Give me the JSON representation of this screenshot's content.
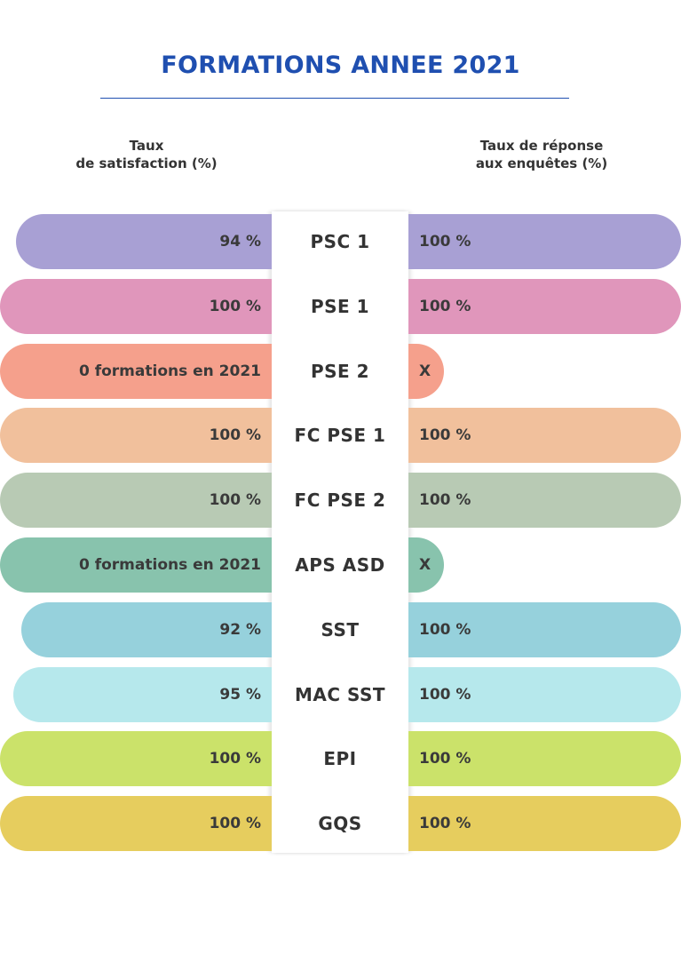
{
  "header": {
    "title": "FORMATIONS ANNEE 2021",
    "left_heading": [
      "Taux",
      "de satisfaction (%)"
    ],
    "right_heading": [
      "Taux de réponse",
      "aux enquêtes (%)"
    ]
  },
  "chart_data": {
    "type": "bar",
    "title": "FORMATIONS ANNEE 2021",
    "categories": [
      "PSC 1",
      "PSE 1",
      "PSE 2",
      "FC PSE 1",
      "FC PSE 2",
      "APS ASD",
      "SST",
      "MAC SST",
      "EPI",
      "GQS"
    ],
    "series": [
      {
        "name": "Taux de satisfaction (%)",
        "values": [
          94,
          100,
          null,
          100,
          100,
          null,
          92,
          95,
          100,
          100
        ],
        "labels": [
          "94 %",
          "100 %",
          "0 formations en 2021",
          "100 %",
          "100 %",
          "0 formations en 2021",
          "92 %",
          "95 %",
          "100 %",
          "100 %"
        ]
      },
      {
        "name": "Taux de réponse aux enquêtes (%)",
        "values": [
          100,
          100,
          null,
          100,
          100,
          null,
          100,
          100,
          100,
          100
        ],
        "labels": [
          "100 %",
          "100 %",
          "X",
          "100 %",
          "100 %",
          "X",
          "100 %",
          "100 %",
          "100 %",
          "100 %"
        ]
      }
    ],
    "colors": [
      "#a8a0d4",
      "#e096bb",
      "#f5a08c",
      "#f1c09c",
      "#b8cab4",
      "#88c3ad",
      "#96d1dc",
      "#b6e8ec",
      "#cbe26a",
      "#e6cd5e"
    ],
    "ylim": [
      0,
      100
    ]
  }
}
